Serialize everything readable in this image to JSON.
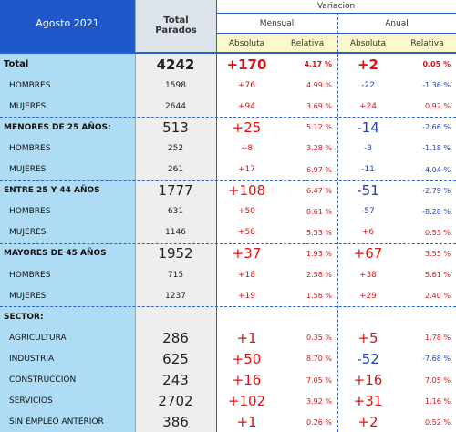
{
  "header": {
    "period": "Agosto 2021",
    "total": "Total Parados",
    "variacion": "Variacion",
    "mensual": "Mensual",
    "anual": "Anual",
    "absoluta": "Absoluta",
    "relativa": "Relativa"
  },
  "rows": [
    {
      "label": "Total",
      "total": "4242",
      "mensual": [
        "+170",
        "4.17 %"
      ],
      "anual": [
        "+2",
        "0.05 %"
      ]
    },
    {
      "label": "HOMBRES",
      "total": "1598",
      "mensual": [
        "+76",
        "4.99 %"
      ],
      "anual": [
        "-22",
        "-1.36 %"
      ]
    },
    {
      "label": "MUJERES",
      "total": "2644",
      "mensual": [
        "+94",
        "3.69 %"
      ],
      "anual": [
        "+24",
        "0.92 %"
      ]
    },
    {
      "label": "MENORES DE 25 AÑOS:",
      "total": "513",
      "mensual": [
        "+25",
        "5.12 %"
      ],
      "anual": [
        "-14",
        "-2.66 %"
      ]
    },
    {
      "label": "HOMBRES",
      "total": "252",
      "mensual": [
        "+8",
        "3.28 %"
      ],
      "anual": [
        "-3",
        "-1.18 %"
      ]
    },
    {
      "label": "MUJERES",
      "total": "261",
      "mensual": [
        "+17",
        "6.97 %"
      ],
      "anual": [
        "-11",
        "-4.04 %"
      ]
    },
    {
      "label": "ENTRE 25 Y 44 AÑOS",
      "total": "1777",
      "mensual": [
        "+108",
        "6.47 %"
      ],
      "anual": [
        "-51",
        "-2.79 %"
      ]
    },
    {
      "label": "HOMBRES",
      "total": "631",
      "mensual": [
        "+50",
        "8.61 %"
      ],
      "anual": [
        "-57",
        "-8.28 %"
      ]
    },
    {
      "label": "MUJERES",
      "total": "1146",
      "mensual": [
        "+58",
        "5.33 %"
      ],
      "anual": [
        "+6",
        "0.53 %"
      ]
    },
    {
      "label": "MAYORES DE 45 AÑOS",
      "total": "1952",
      "mensual": [
        "+37",
        "1.93 %"
      ],
      "anual": [
        "+67",
        "3.55 %"
      ]
    },
    {
      "label": "HOMBRES",
      "total": "715",
      "mensual": [
        "+18",
        "2.58 %"
      ],
      "anual": [
        "+38",
        "5.61 %"
      ]
    },
    {
      "label": "MUJERES",
      "total": "1237",
      "mensual": [
        "+19",
        "1.56 %"
      ],
      "anual": [
        "+29",
        "2.40 %"
      ]
    },
    {
      "label": "SECTOR:"
    },
    {
      "label": "AGRICULTURA",
      "total": "286",
      "mensual": [
        "+1",
        "0.35 %"
      ],
      "anual": [
        "+5",
        "1.78 %"
      ]
    },
    {
      "label": "INDUSTRIA",
      "total": "625",
      "mensual": [
        "+50",
        "8.70 %"
      ],
      "anual": [
        "-52",
        "-7.68 %"
      ]
    },
    {
      "label": "CONSTRUCCIÓN",
      "total": "243",
      "mensual": [
        "+16",
        "7.05 %"
      ],
      "anual": [
        "+16",
        "7.05 %"
      ]
    },
    {
      "label": "SERVICIOS",
      "total": "2702",
      "mensual": [
        "+102",
        "3.92 %"
      ],
      "anual": [
        "+31",
        "1.16 %"
      ]
    },
    {
      "label": "SIN EMPLEO ANTERIOR",
      "total": "386",
      "mensual": [
        "+1",
        "0.26 %"
      ],
      "anual": [
        "+2",
        "0.52 %"
      ]
    }
  ]
}
